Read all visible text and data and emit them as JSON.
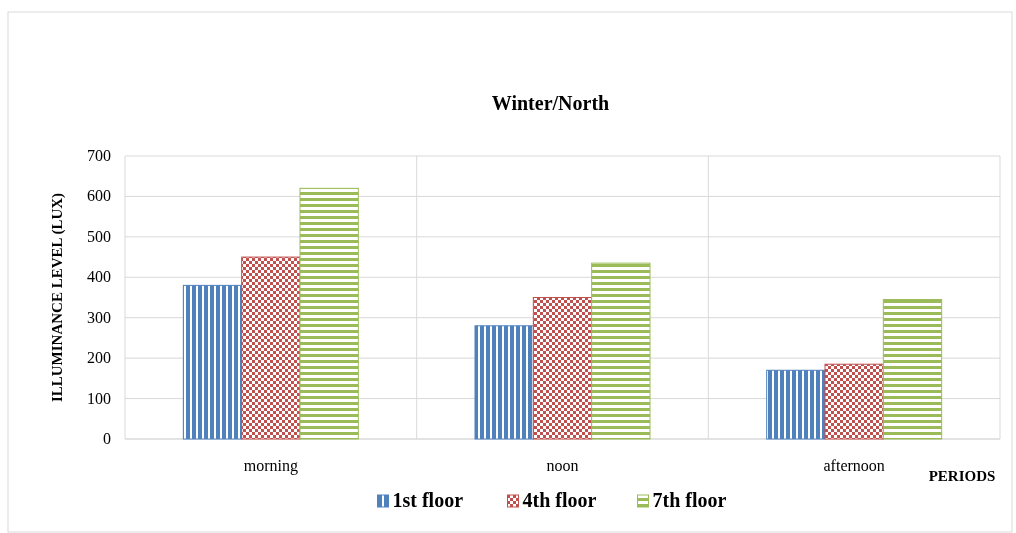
{
  "chart_data": {
    "type": "bar",
    "title": "Winter/North",
    "xlabel": "PERIODS",
    "ylabel": "ILLUMINANCE  LEVEL (LUX)",
    "categories": [
      "morning",
      "noon",
      "afternoon"
    ],
    "series": [
      {
        "name": "1st floor",
        "color": "#4f81bd",
        "values": [
          380,
          280,
          170
        ]
      },
      {
        "name": "4th floor",
        "color": "#c0504d",
        "values": [
          450,
          350,
          185
        ]
      },
      {
        "name": "7th floor",
        "color": "#9bbb59",
        "values": [
          620,
          435,
          345
        ]
      }
    ],
    "ylim": [
      0,
      700
    ],
    "yticks": [
      0,
      100,
      200,
      300,
      400,
      500,
      600,
      700
    ],
    "grid": true,
    "legend": "bottom"
  }
}
